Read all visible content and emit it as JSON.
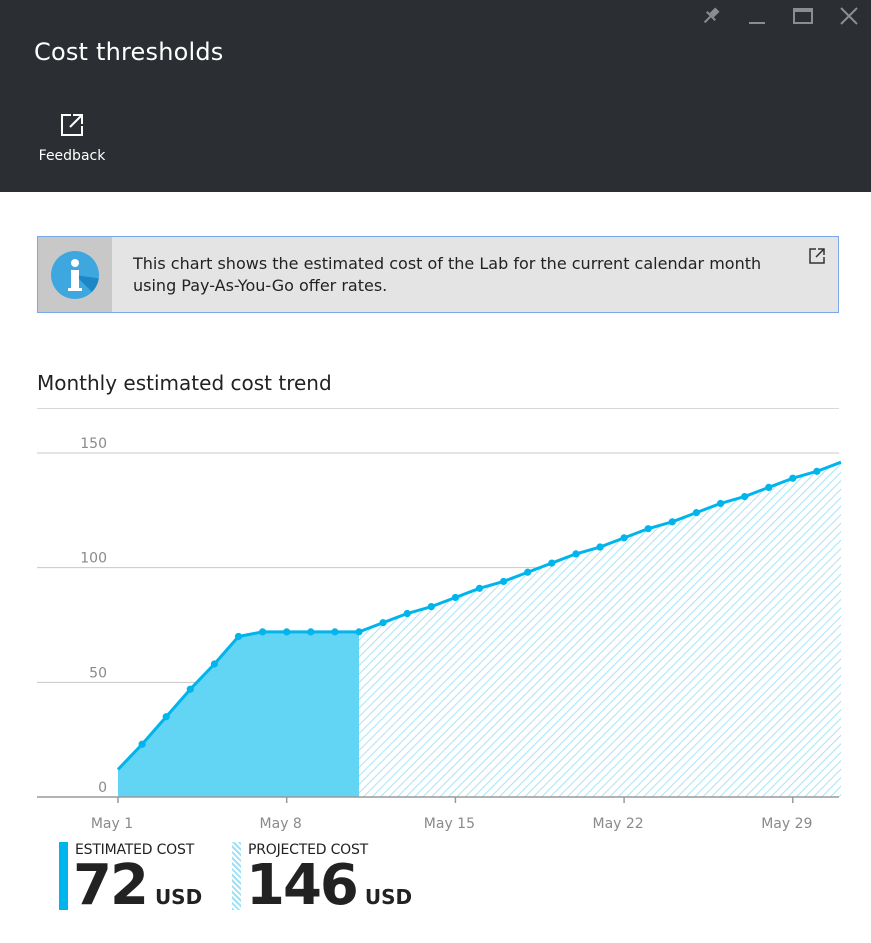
{
  "header": {
    "title": "Cost thresholds",
    "feedback_label": "Feedback",
    "window_controls": [
      "pin-icon",
      "minimize-icon",
      "maximize-icon",
      "close-icon"
    ]
  },
  "info": {
    "text": "This chart shows the estimated cost of the Lab for the current calendar month using Pay-As-You-Go offer rates.",
    "icon": "info-icon",
    "link_icon": "external-link-icon"
  },
  "chart_section": {
    "title": "Monthly estimated cost trend"
  },
  "chart_data": {
    "type": "area",
    "title": "Monthly estimated cost trend",
    "x_ticks": [
      "May 1",
      "May 8",
      "May 15",
      "May 22",
      "May 29"
    ],
    "y_ticks": [
      0,
      50,
      100,
      150
    ],
    "ylim": [
      0,
      150
    ],
    "xlim": [
      1,
      31
    ],
    "grid": true,
    "series": [
      {
        "name": "ESTIMATED COST",
        "color": "#00b4ec",
        "fill": "#62d4f4",
        "x": [
          1,
          2,
          3,
          4,
          5,
          6,
          7,
          8,
          9,
          10,
          11
        ],
        "values": [
          12,
          23,
          35,
          47,
          58,
          70,
          72,
          72,
          72,
          72,
          72
        ]
      },
      {
        "name": "PROJECTED COST",
        "color": "#00b4ec",
        "x": [
          11,
          12,
          13,
          14,
          15,
          16,
          17,
          18,
          19,
          20,
          21,
          22,
          23,
          24,
          25,
          26,
          27,
          28,
          29,
          30,
          31
        ],
        "values": [
          72,
          76,
          80,
          83,
          87,
          91,
          94,
          98,
          102,
          106,
          109,
          113,
          117,
          120,
          124,
          128,
          131,
          135,
          139,
          142,
          146
        ]
      }
    ]
  },
  "legend": {
    "estimated": {
      "label": "ESTIMATED COST",
      "value": "72",
      "unit": "USD",
      "color": "#00b4ec"
    },
    "projected": {
      "label": "PROJECTED COST",
      "value": "146",
      "unit": "USD",
      "color": "#9fe0f4"
    }
  }
}
